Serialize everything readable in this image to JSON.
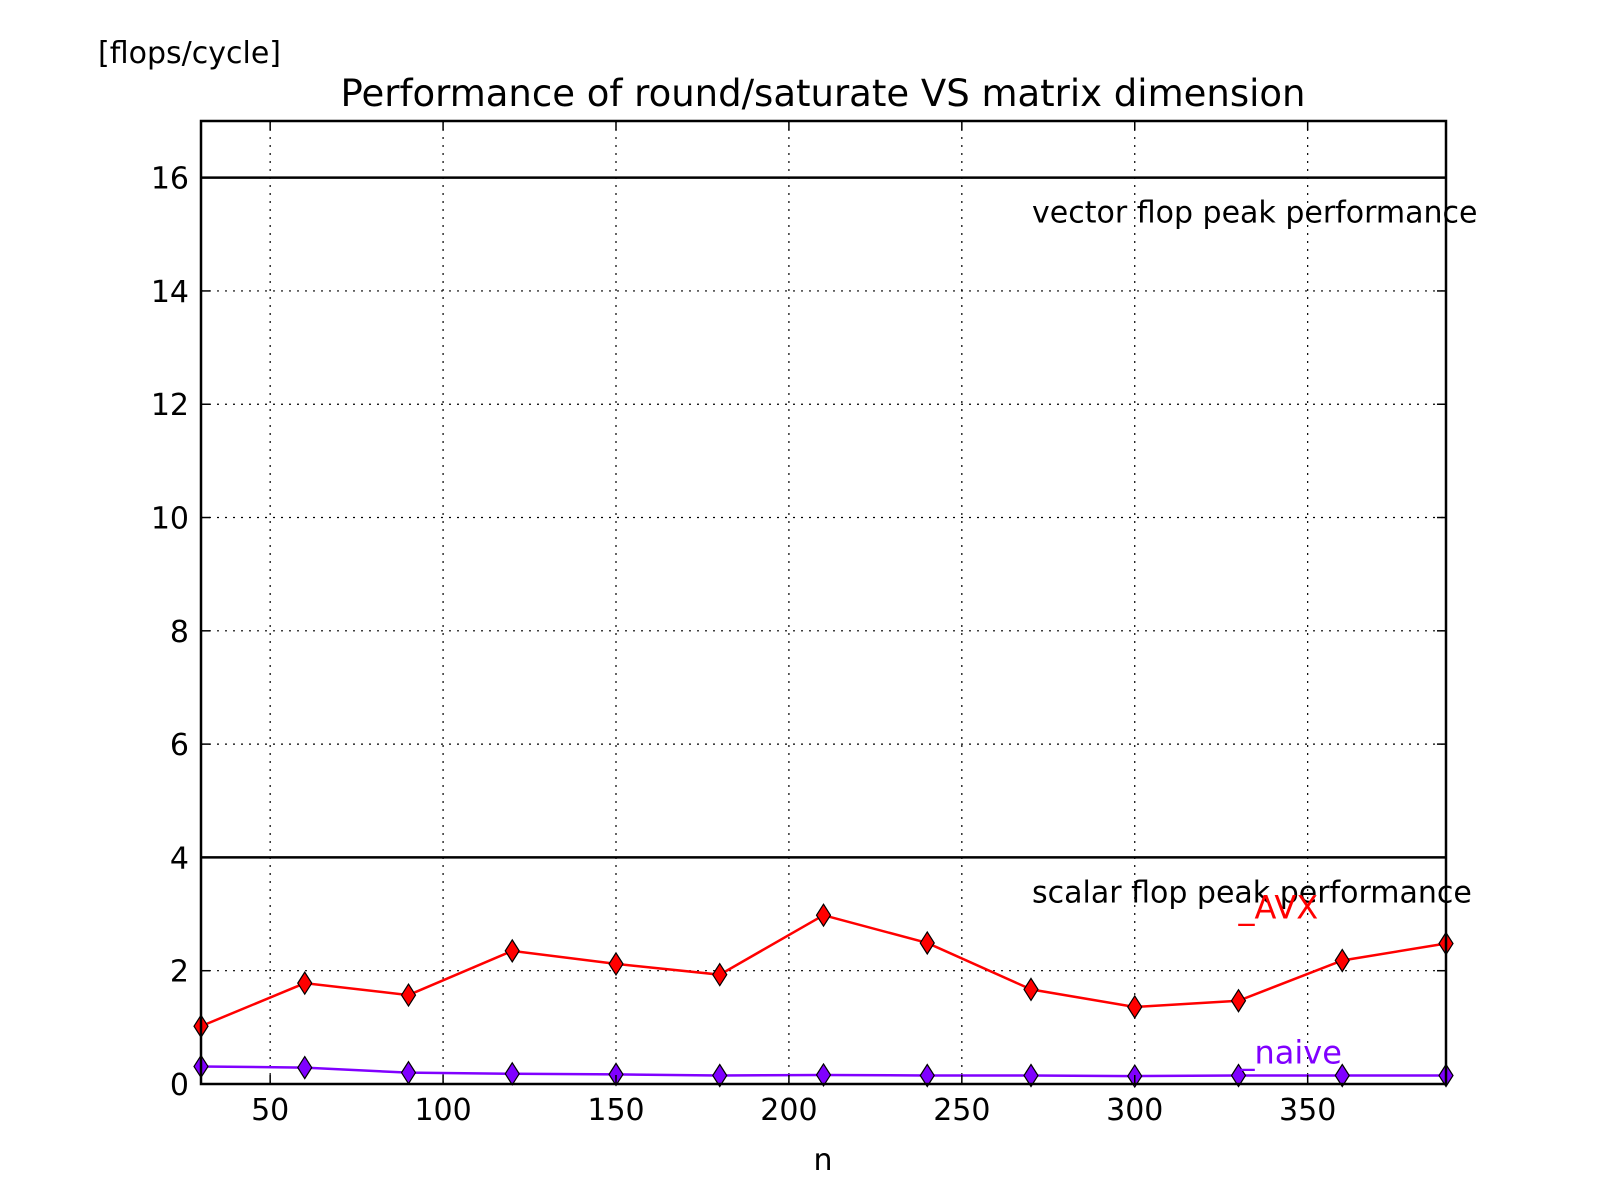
{
  "chart_data": {
    "type": "line",
    "title": "Performance of round/saturate VS matrix dimension",
    "ylabel": "[flops/cycle]",
    "xlabel": "n",
    "xlim": [
      30,
      390
    ],
    "ylim": [
      0,
      17
    ],
    "xticks": [
      50,
      100,
      150,
      200,
      250,
      300,
      350
    ],
    "yticks": [
      0,
      2,
      4,
      6,
      8,
      10,
      12,
      14,
      16
    ],
    "grid": true,
    "marker": "diamond",
    "x": [
      30,
      60,
      90,
      120,
      150,
      180,
      210,
      240,
      270,
      300,
      330,
      360,
      390
    ],
    "series": [
      {
        "name": "_AVX",
        "color": "#ff0000",
        "values": [
          1.02,
          1.78,
          1.57,
          2.35,
          2.12,
          1.93,
          2.98,
          2.49,
          1.67,
          1.36,
          1.47,
          2.18,
          2.48
        ]
      },
      {
        "name": "_naive",
        "color": "#8000ff",
        "values": [
          0.31,
          0.29,
          0.2,
          0.18,
          0.17,
          0.15,
          0.16,
          0.15,
          0.15,
          0.14,
          0.15,
          0.15,
          0.15
        ]
      }
    ],
    "reference_lines": [
      {
        "value": 16,
        "label": "vector flop peak performance",
        "color": "#000000"
      },
      {
        "value": 4,
        "label": "scalar flop peak performance",
        "color": "#000000"
      }
    ]
  }
}
